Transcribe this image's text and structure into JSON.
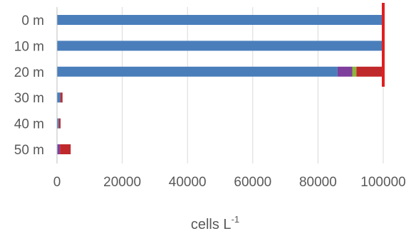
{
  "chart_data": {
    "type": "bar",
    "orientation": "horizontal",
    "stacked": true,
    "title": "",
    "xlabel": "cells L",
    "xlabel_superscript": "-1",
    "ylabel": "",
    "categories": [
      "0 m",
      "10 m",
      "20 m",
      "30 m",
      "40 m",
      "50 m"
    ],
    "xlim": [
      0,
      100000
    ],
    "xticks": [
      0,
      20000,
      40000,
      60000,
      80000,
      100000
    ],
    "grid": "vertical",
    "legend": "none",
    "series": [
      {
        "color": "#4a7ebb",
        "values": [
          99600,
          99600,
          86000,
          1100,
          600,
          200
        ]
      },
      {
        "color": "#7e3f9d",
        "values": [
          0,
          0,
          4500,
          0,
          0,
          700
        ]
      },
      {
        "color": "#8db53d",
        "values": [
          0,
          0,
          1300,
          0,
          0,
          0
        ]
      },
      {
        "color": "#c0292b",
        "values": [
          0,
          0,
          8000,
          600,
          500,
          3300
        ]
      }
    ],
    "reference_line": {
      "value": 100000,
      "color": "#e02020"
    }
  }
}
